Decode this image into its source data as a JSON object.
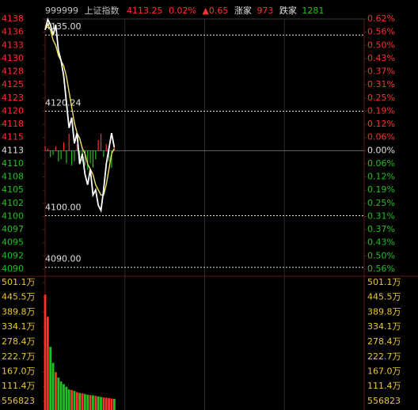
{
  "header": {
    "code": "999999",
    "name": "上证指数",
    "price": "4113.25",
    "change_pct": "0.02%",
    "change": "▲0.65",
    "up_label": "涨家",
    "up_count": "973",
    "down_label": "跌家",
    "down_count": "1281"
  },
  "chart_data": {
    "type": "line",
    "x": [
      0,
      2,
      4,
      6,
      8,
      10,
      12,
      14,
      16,
      18,
      20,
      22,
      24,
      26,
      28,
      30,
      32,
      34,
      36,
      38,
      40,
      42,
      44,
      46,
      48,
      50,
      52
    ],
    "xlim": [
      0,
      240
    ],
    "xgrid": [
      0,
      60,
      120,
      180,
      240
    ],
    "series": [
      {
        "name": "price",
        "color": "#ffffff",
        "values": [
          4136,
          4138,
          4137,
          4135,
          4137,
          4132,
          4130,
          4127,
          4122,
          4117,
          4119,
          4114,
          4116,
          4110,
          4112,
          4108,
          4106,
          4109,
          4104,
          4105,
          4102,
          4101,
          4105,
          4110,
          4113,
          4116,
          4113.25
        ]
      },
      {
        "name": "average",
        "color": "#f0e060",
        "values": [
          4136,
          4137,
          4136,
          4134,
          4133,
          4131,
          4130,
          4129,
          4127,
          4124,
          4121,
          4118,
          4116,
          4115,
          4113,
          4112,
          4110,
          4109,
          4108,
          4106,
          4105,
          4104,
          4104,
          4106,
          4109,
          4112,
          4113
        ]
      }
    ],
    "ylim": [
      4089.65,
      4138.1
    ],
    "yticks": [
      {
        "value": 4138.1,
        "label": "4138"
      },
      {
        "value": 4135.55,
        "label": "4136"
      },
      {
        "value": 4133.0,
        "label": "4133"
      },
      {
        "value": 4130.45,
        "label": "4130"
      },
      {
        "value": 4127.9,
        "label": "4128"
      },
      {
        "value": 4125.35,
        "label": "4125"
      },
      {
        "value": 4122.8,
        "label": "4123"
      },
      {
        "value": 4120.25,
        "label": "4120"
      },
      {
        "value": 4117.7,
        "label": "4118"
      },
      {
        "value": 4115.15,
        "label": "4115"
      },
      {
        "value": 4112.6,
        "label": "4113"
      },
      {
        "value": 4110.05,
        "label": "4110"
      },
      {
        "value": 4107.5,
        "label": "4108"
      },
      {
        "value": 4104.95,
        "label": "4105"
      },
      {
        "value": 4102.4,
        "label": "4102"
      },
      {
        "value": 4099.85,
        "label": "4100"
      },
      {
        "value": 4097.3,
        "label": "4097"
      },
      {
        "value": 4094.75,
        "label": "4095"
      },
      {
        "value": 4092.2,
        "label": "4092"
      },
      {
        "value": 4089.65,
        "label": "4090"
      }
    ],
    "y2lim": [
      -0.558,
      0.62
    ],
    "y2ticks": [
      {
        "value": 0.62,
        "label": "0.62%"
      },
      {
        "value": 0.558,
        "label": "0.56%"
      },
      {
        "value": 0.496,
        "label": "0.50%"
      },
      {
        "value": 0.434,
        "label": "0.43%"
      },
      {
        "value": 0.372,
        "label": "0.37%"
      },
      {
        "value": 0.31,
        "label": "0.31%"
      },
      {
        "value": 0.248,
        "label": "0.25%"
      },
      {
        "value": 0.186,
        "label": "0.19%"
      },
      {
        "value": 0.124,
        "label": "0.12%"
      },
      {
        "value": 0.062,
        "label": "0.06%"
      },
      {
        "value": 0,
        "label": "0.00%"
      },
      {
        "value": -0.062,
        "label": "0.06%"
      },
      {
        "value": -0.124,
        "label": "0.12%"
      },
      {
        "value": -0.186,
        "label": "0.19%"
      },
      {
        "value": -0.248,
        "label": "0.25%"
      },
      {
        "value": -0.31,
        "label": "0.31%"
      },
      {
        "value": -0.372,
        "label": "0.37%"
      },
      {
        "value": -0.434,
        "label": "0.43%"
      },
      {
        "value": -0.496,
        "label": "0.50%"
      },
      {
        "value": -0.558,
        "label": "0.56%"
      }
    ],
    "indicator_bars": [
      0.02,
      0.01,
      -0.03,
      -0.02,
      0.02,
      -0.05,
      -0.04,
      0.04,
      -0.06,
      0.08,
      -0.07,
      -0.05,
      0.03,
      -0.06,
      -0.05,
      -0.07,
      -0.09,
      -0.06,
      -0.08,
      -0.04,
      0.05,
      0.08,
      -0.03,
      0.03,
      -0.05,
      -0.08,
      0.02
    ],
    "reference_lines": [
      {
        "value": 4135,
        "label": "4135.00"
      },
      {
        "value": 4120.24,
        "label": "4120.24"
      },
      {
        "value": 4100,
        "label": "4100.00"
      },
      {
        "value": 4090,
        "label": "4090.00"
      }
    ],
    "up_color": "#ff3030",
    "down_color": "#20c020",
    "flat_color": "#e0e0e0",
    "volume": [
      4560000,
      3730000,
      2600000,
      2000000,
      1650000,
      1450000,
      1300000,
      1200000,
      1100000,
      1000000,
      980000,
      950000,
      900000,
      870000,
      850000,
      830000,
      800000,
      790000,
      780000,
      760000,
      740000,
      720000,
      700000,
      690000,
      680000,
      660000,
      650000
    ],
    "volume_ylim": [
      0,
      5011407
    ],
    "volume_ticks": [
      {
        "value": 5011407,
        "label": "501.1万"
      },
      {
        "value": 4455000,
        "label": "445.5万"
      },
      {
        "value": 3898000,
        "label": "389.8万"
      },
      {
        "value": 3341000,
        "label": "334.1万"
      },
      {
        "value": 2784000,
        "label": "278.4万"
      },
      {
        "value": 2227000,
        "label": "222.7万"
      },
      {
        "value": 1670000,
        "label": "167.0万"
      },
      {
        "value": 1114000,
        "label": "111.4万"
      },
      556823
    ],
    "volume_label_color": "#e8c830"
  }
}
